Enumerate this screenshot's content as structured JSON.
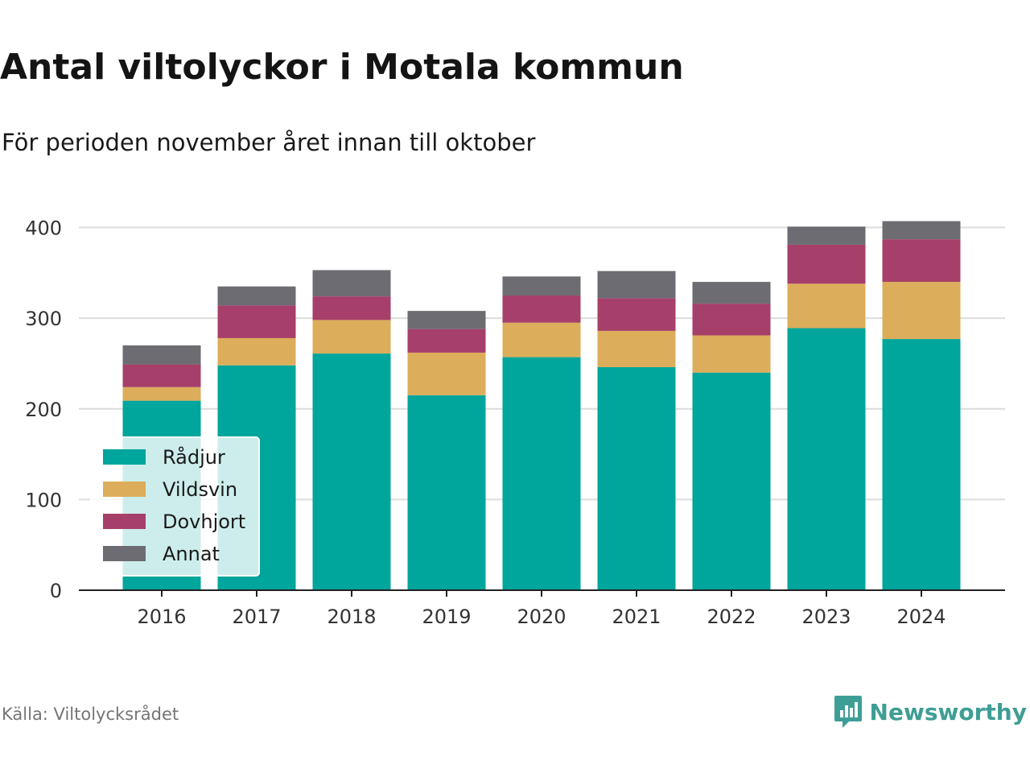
{
  "title": "Antal viltolyckor i Motala kommun",
  "subtitle": "För perioden november året innan till oktober",
  "source": "Källa: Viltolycksrådet",
  "brand": {
    "name": "Newsworthy",
    "icon": "newsworthy-logo-icon",
    "color": "#3e9e95"
  },
  "chart_data": {
    "type": "bar",
    "stacked": true,
    "categories": [
      "2016",
      "2017",
      "2018",
      "2019",
      "2020",
      "2021",
      "2022",
      "2023",
      "2024"
    ],
    "series": [
      {
        "name": "Rådjur",
        "color": "#00a59b",
        "values": [
          209,
          248,
          261,
          215,
          257,
          246,
          240,
          289,
          277
        ]
      },
      {
        "name": "Vildsvin",
        "color": "#dcad5a",
        "values": [
          15,
          30,
          37,
          47,
          38,
          40,
          41,
          49,
          63
        ]
      },
      {
        "name": "Dovhjort",
        "color": "#a63f69",
        "values": [
          25,
          36,
          26,
          26,
          30,
          36,
          35,
          43,
          47
        ]
      },
      {
        "name": "Annat",
        "color": "#6d6c72",
        "values": [
          21,
          21,
          29,
          20,
          21,
          30,
          24,
          20,
          20
        ]
      }
    ],
    "ylim": [
      0,
      420
    ],
    "yticks": [
      "0",
      "100",
      "200",
      "300",
      "400"
    ],
    "ytick_values": [
      0,
      100,
      200,
      300,
      400
    ],
    "grid": true,
    "legend_position": "bottom-left",
    "xlabel": "",
    "ylabel": ""
  }
}
